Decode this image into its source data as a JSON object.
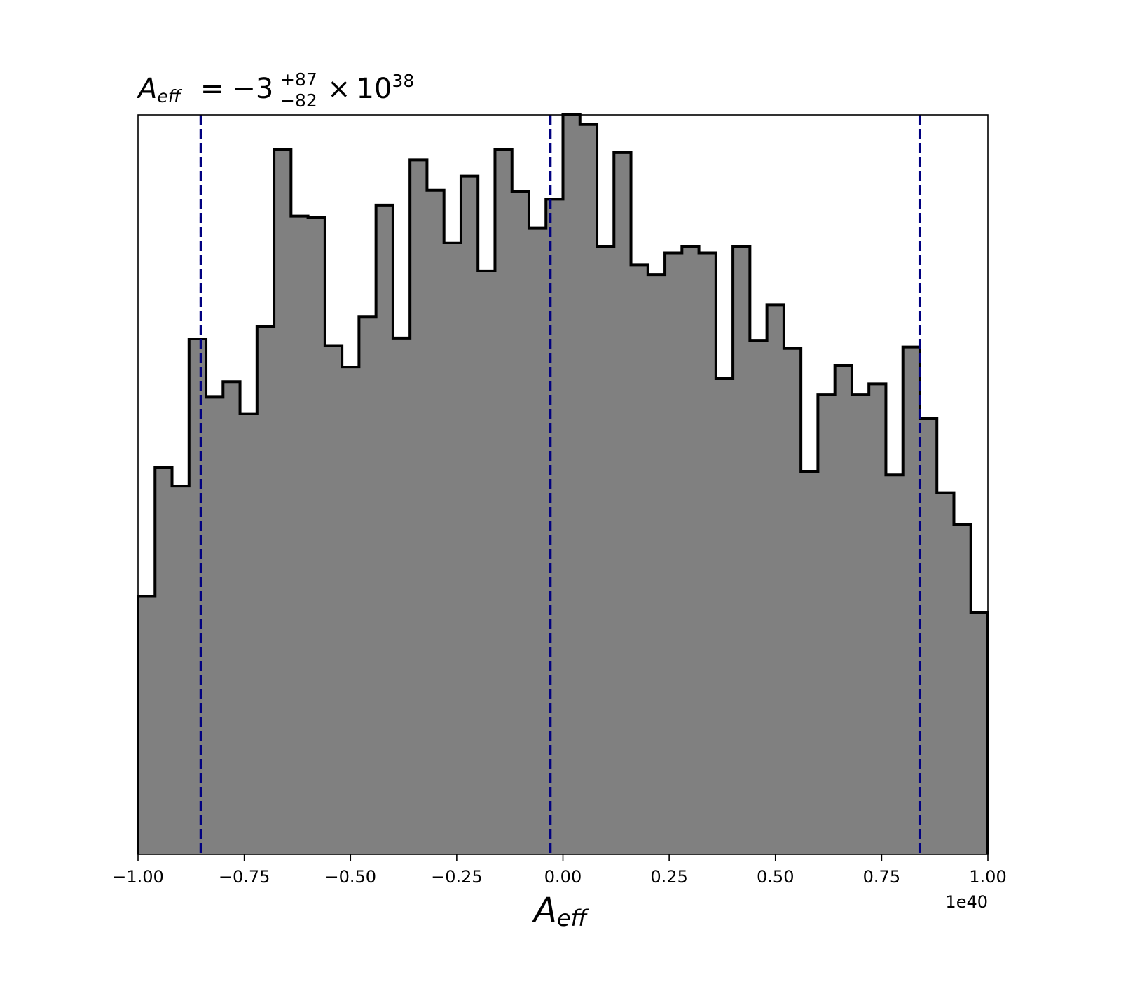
{
  "chart_data": {
    "type": "histogram",
    "title": {
      "symbol": "A",
      "symbol_subscript": "eff",
      "equals": "=",
      "value": "−3",
      "upper_error": "+87",
      "lower_error": "−82",
      "multiplier": "×",
      "base": "10",
      "exponent": "38"
    },
    "xlabel": {
      "symbol": "A",
      "subscript": "eff"
    },
    "x_offset_label": "1e40",
    "xlim": [
      -1.0,
      1.0
    ],
    "ylim": [
      0,
      1.0
    ],
    "x_ticks": [
      -1.0,
      -0.75,
      -0.5,
      -0.25,
      0.0,
      0.25,
      0.5,
      0.75,
      1.0
    ],
    "x_tick_labels": [
      "−1.00",
      "−0.75",
      "−0.50",
      "−0.25",
      "0.00",
      "0.25",
      "0.50",
      "0.75",
      "1.00"
    ],
    "y_ticks_shown": false,
    "bin_edges": [
      -1.0,
      -0.96,
      -0.92,
      -0.88,
      -0.84,
      -0.8,
      -0.76,
      -0.72,
      -0.68,
      -0.64,
      -0.6,
      -0.56,
      -0.52,
      -0.48,
      -0.44,
      -0.4,
      -0.36,
      -0.32,
      -0.28,
      -0.24,
      -0.2,
      -0.16,
      -0.12,
      -0.08,
      -0.04,
      0.0,
      0.04,
      0.08,
      0.12,
      0.16,
      0.2,
      0.24,
      0.28,
      0.32,
      0.36,
      0.4,
      0.44,
      0.48,
      0.52,
      0.56,
      0.6,
      0.64,
      0.68,
      0.72,
      0.76,
      0.8,
      0.84,
      0.88,
      0.92,
      0.96,
      1.0
    ],
    "counts": [
      0.349,
      0.523,
      0.498,
      0.697,
      0.619,
      0.639,
      0.596,
      0.714,
      0.953,
      0.863,
      0.861,
      0.688,
      0.659,
      0.727,
      0.878,
      0.698,
      0.939,
      0.898,
      0.827,
      0.917,
      0.789,
      0.953,
      0.896,
      0.847,
      0.886,
      1.0,
      0.987,
      0.822,
      0.949,
      0.797,
      0.784,
      0.813,
      0.822,
      0.813,
      0.643,
      0.822,
      0.695,
      0.743,
      0.684,
      0.518,
      0.622,
      0.661,
      0.622,
      0.636,
      0.513,
      0.686,
      0.59,
      0.489,
      0.446,
      0.327
    ],
    "fill_color": "#808080",
    "edge_color": "#000000",
    "vertical_lines": [
      {
        "x": -0.852,
        "style": "dashed",
        "color": "#000080"
      },
      {
        "x": -0.03,
        "style": "dashed",
        "color": "#000080"
      },
      {
        "x": 0.84,
        "style": "dashed",
        "color": "#000080"
      }
    ]
  }
}
